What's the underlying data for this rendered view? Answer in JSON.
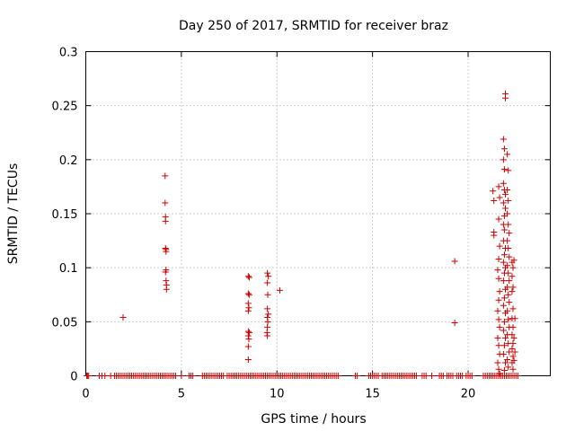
{
  "chart_data": {
    "type": "scatter",
    "title": "Day 250 of 2017, SRMTID for receiver braz",
    "xlabel": "GPS time / hours",
    "ylabel": "SRMTID / TECUs",
    "xlim": [
      0,
      24.3
    ],
    "ylim": [
      0,
      0.3
    ],
    "xticks": [
      0,
      5,
      10,
      15,
      20
    ],
    "xtick_labels": [
      "0",
      "5",
      "10",
      "15",
      "20"
    ],
    "yticks": [
      0,
      0.05,
      0.1,
      0.15,
      0.2,
      0.25,
      0.3
    ],
    "ytick_labels": [
      "0",
      "0.05",
      "0.1",
      "0.15",
      "0.2",
      "0.25",
      "0.3"
    ],
    "grid": true,
    "marker": "+",
    "color": "#cc0000",
    "series": [
      {
        "name": "SRMTID",
        "points": [
          [
            1.95,
            0.054
          ],
          [
            4.15,
            0.185
          ],
          [
            4.15,
            0.16
          ],
          [
            4.17,
            0.147
          ],
          [
            4.17,
            0.143
          ],
          [
            4.17,
            0.118
          ],
          [
            4.19,
            0.117
          ],
          [
            4.2,
            0.115
          ],
          [
            4.2,
            0.098
          ],
          [
            4.17,
            0.096
          ],
          [
            4.2,
            0.088
          ],
          [
            4.22,
            0.084
          ],
          [
            4.22,
            0.08
          ],
          [
            8.5,
            0.092
          ],
          [
            8.55,
            0.091
          ],
          [
            8.5,
            0.076
          ],
          [
            8.55,
            0.075
          ],
          [
            8.5,
            0.067
          ],
          [
            8.53,
            0.063
          ],
          [
            8.5,
            0.06
          ],
          [
            8.5,
            0.041
          ],
          [
            8.55,
            0.04
          ],
          [
            8.5,
            0.037
          ],
          [
            8.53,
            0.034
          ],
          [
            8.5,
            0.027
          ],
          [
            8.5,
            0.015
          ],
          [
            9.5,
            0.095
          ],
          [
            9.55,
            0.092
          ],
          [
            9.5,
            0.086
          ],
          [
            9.52,
            0.075
          ],
          [
            9.5,
            0.062
          ],
          [
            9.55,
            0.057
          ],
          [
            9.5,
            0.054
          ],
          [
            9.52,
            0.05
          ],
          [
            9.5,
            0.045
          ],
          [
            9.48,
            0.04
          ],
          [
            9.5,
            0.037
          ],
          [
            10.15,
            0.079
          ],
          [
            19.3,
            0.106
          ],
          [
            19.3,
            0.049
          ],
          [
            21.3,
            0.171
          ],
          [
            21.35,
            0.162
          ],
          [
            21.35,
            0.133
          ],
          [
            21.35,
            0.13
          ],
          [
            21.6,
            0.175
          ],
          [
            21.65,
            0.165
          ],
          [
            21.6,
            0.145
          ],
          [
            21.65,
            0.12
          ],
          [
            21.6,
            0.108
          ],
          [
            21.55,
            0.098
          ],
          [
            21.6,
            0.09
          ],
          [
            21.65,
            0.078
          ],
          [
            21.6,
            0.07
          ],
          [
            21.55,
            0.06
          ],
          [
            21.6,
            0.052
          ],
          [
            21.65,
            0.045
          ],
          [
            21.55,
            0.035
          ],
          [
            21.6,
            0.028
          ],
          [
            21.65,
            0.02
          ],
          [
            21.55,
            0.012
          ],
          [
            21.6,
            0.006
          ],
          [
            21.65,
            0.002
          ],
          [
            21.85,
            0.219
          ],
          [
            21.9,
            0.21
          ],
          [
            21.85,
            0.2
          ],
          [
            21.9,
            0.191
          ],
          [
            21.85,
            0.178
          ],
          [
            21.9,
            0.172
          ],
          [
            21.95,
            0.168
          ],
          [
            21.85,
            0.16
          ],
          [
            21.95,
            0.155
          ],
          [
            21.9,
            0.148
          ],
          [
            21.85,
            0.14
          ],
          [
            21.9,
            0.135
          ],
          [
            21.85,
            0.125
          ],
          [
            21.95,
            0.118
          ],
          [
            21.9,
            0.112
          ],
          [
            21.85,
            0.105
          ],
          [
            21.95,
            0.1
          ],
          [
            21.9,
            0.095
          ],
          [
            21.85,
            0.088
          ],
          [
            21.95,
            0.08
          ],
          [
            21.9,
            0.072
          ],
          [
            21.85,
            0.065
          ],
          [
            21.95,
            0.058
          ],
          [
            21.9,
            0.05
          ],
          [
            21.85,
            0.042
          ],
          [
            21.95,
            0.035
          ],
          [
            21.9,
            0.028
          ],
          [
            21.85,
            0.02
          ],
          [
            21.95,
            0.012
          ],
          [
            21.9,
            0.005
          ],
          [
            21.95,
            0.261
          ],
          [
            21.95,
            0.257
          ],
          [
            22.05,
            0.205
          ],
          [
            22.1,
            0.19
          ],
          [
            22.05,
            0.172
          ],
          [
            22.1,
            0.162
          ],
          [
            22.05,
            0.15
          ],
          [
            22.1,
            0.14
          ],
          [
            22.15,
            0.132
          ],
          [
            22.05,
            0.125
          ],
          [
            22.1,
            0.118
          ],
          [
            22.15,
            0.11
          ],
          [
            22.05,
            0.102
          ],
          [
            22.1,
            0.095
          ],
          [
            22.15,
            0.088
          ],
          [
            22.05,
            0.082
          ],
          [
            22.1,
            0.075
          ],
          [
            22.15,
            0.068
          ],
          [
            22.05,
            0.06
          ],
          [
            22.1,
            0.052
          ],
          [
            22.15,
            0.045
          ],
          [
            22.05,
            0.038
          ],
          [
            22.1,
            0.03
          ],
          [
            22.15,
            0.022
          ],
          [
            22.05,
            0.015
          ],
          [
            22.1,
            0.008
          ],
          [
            22.3,
            0.105
          ],
          [
            22.35,
            0.1
          ],
          [
            22.3,
            0.092
          ],
          [
            22.35,
            0.082
          ],
          [
            22.3,
            0.078
          ],
          [
            22.35,
            0.062
          ],
          [
            22.3,
            0.053
          ],
          [
            22.35,
            0.045
          ],
          [
            22.3,
            0.038
          ],
          [
            22.35,
            0.03
          ],
          [
            22.3,
            0.025
          ],
          [
            22.35,
            0.018
          ],
          [
            22.3,
            0.012
          ],
          [
            22.35,
            0.006
          ],
          [
            22.4,
            0.107
          ],
          [
            22.45,
            0.053
          ],
          [
            22.4,
            0.035
          ],
          [
            22.45,
            0.022
          ],
          [
            22.4,
            0.014
          ]
        ],
        "zero_x": [
          0.05,
          0.1,
          0.15,
          0.7,
          0.85,
          1.0,
          1.3,
          1.5,
          1.6,
          1.7,
          1.8,
          1.9,
          2.0,
          2.1,
          2.2,
          2.3,
          2.4,
          2.5,
          2.6,
          2.7,
          2.8,
          2.9,
          3.0,
          3.1,
          3.2,
          3.3,
          3.4,
          3.5,
          3.6,
          3.7,
          3.8,
          3.9,
          4.0,
          4.1,
          4.2,
          4.3,
          4.4,
          4.5,
          4.6,
          4.7,
          5.0,
          5.4,
          5.5,
          5.6,
          6.1,
          6.2,
          6.3,
          6.4,
          6.5,
          6.6,
          6.7,
          6.8,
          6.9,
          7.0,
          7.1,
          7.2,
          7.4,
          7.5,
          7.6,
          7.7,
          7.8,
          7.9,
          8.0,
          8.1,
          8.2,
          8.3,
          8.4,
          8.5,
          8.6,
          8.7,
          8.8,
          8.9,
          9.0,
          9.1,
          9.2,
          9.3,
          9.4,
          9.5,
          9.6,
          9.7,
          9.8,
          9.9,
          10.0,
          10.1,
          10.2,
          10.3,
          10.4,
          10.5,
          10.6,
          10.7,
          10.8,
          10.9,
          11.0,
          11.1,
          11.2,
          11.3,
          11.4,
          11.5,
          11.6,
          11.7,
          11.8,
          11.9,
          12.0,
          12.1,
          12.2,
          12.3,
          12.4,
          12.5,
          12.6,
          12.7,
          12.8,
          12.9,
          13.0,
          13.1,
          13.2,
          14.1,
          14.2,
          14.8,
          14.9,
          15.0,
          15.1,
          15.2,
          15.3,
          15.5,
          15.6,
          15.7,
          15.8,
          15.9,
          16.0,
          16.1,
          16.2,
          16.3,
          16.4,
          16.5,
          16.6,
          16.7,
          16.8,
          16.9,
          17.0,
          17.1,
          17.2,
          17.3,
          17.6,
          17.7,
          17.8,
          18.1,
          18.5,
          18.6,
          18.7,
          18.9,
          19.0,
          19.1,
          19.2,
          19.4,
          19.5,
          19.6,
          19.7,
          19.9,
          20.0,
          20.1,
          20.2,
          20.8,
          20.9,
          21.0,
          21.1,
          21.2,
          21.3,
          21.4,
          21.5,
          21.6,
          21.7,
          21.8,
          21.9,
          22.0,
          22.1,
          22.2,
          22.3,
          22.4,
          22.5,
          22.6
        ]
      }
    ]
  }
}
